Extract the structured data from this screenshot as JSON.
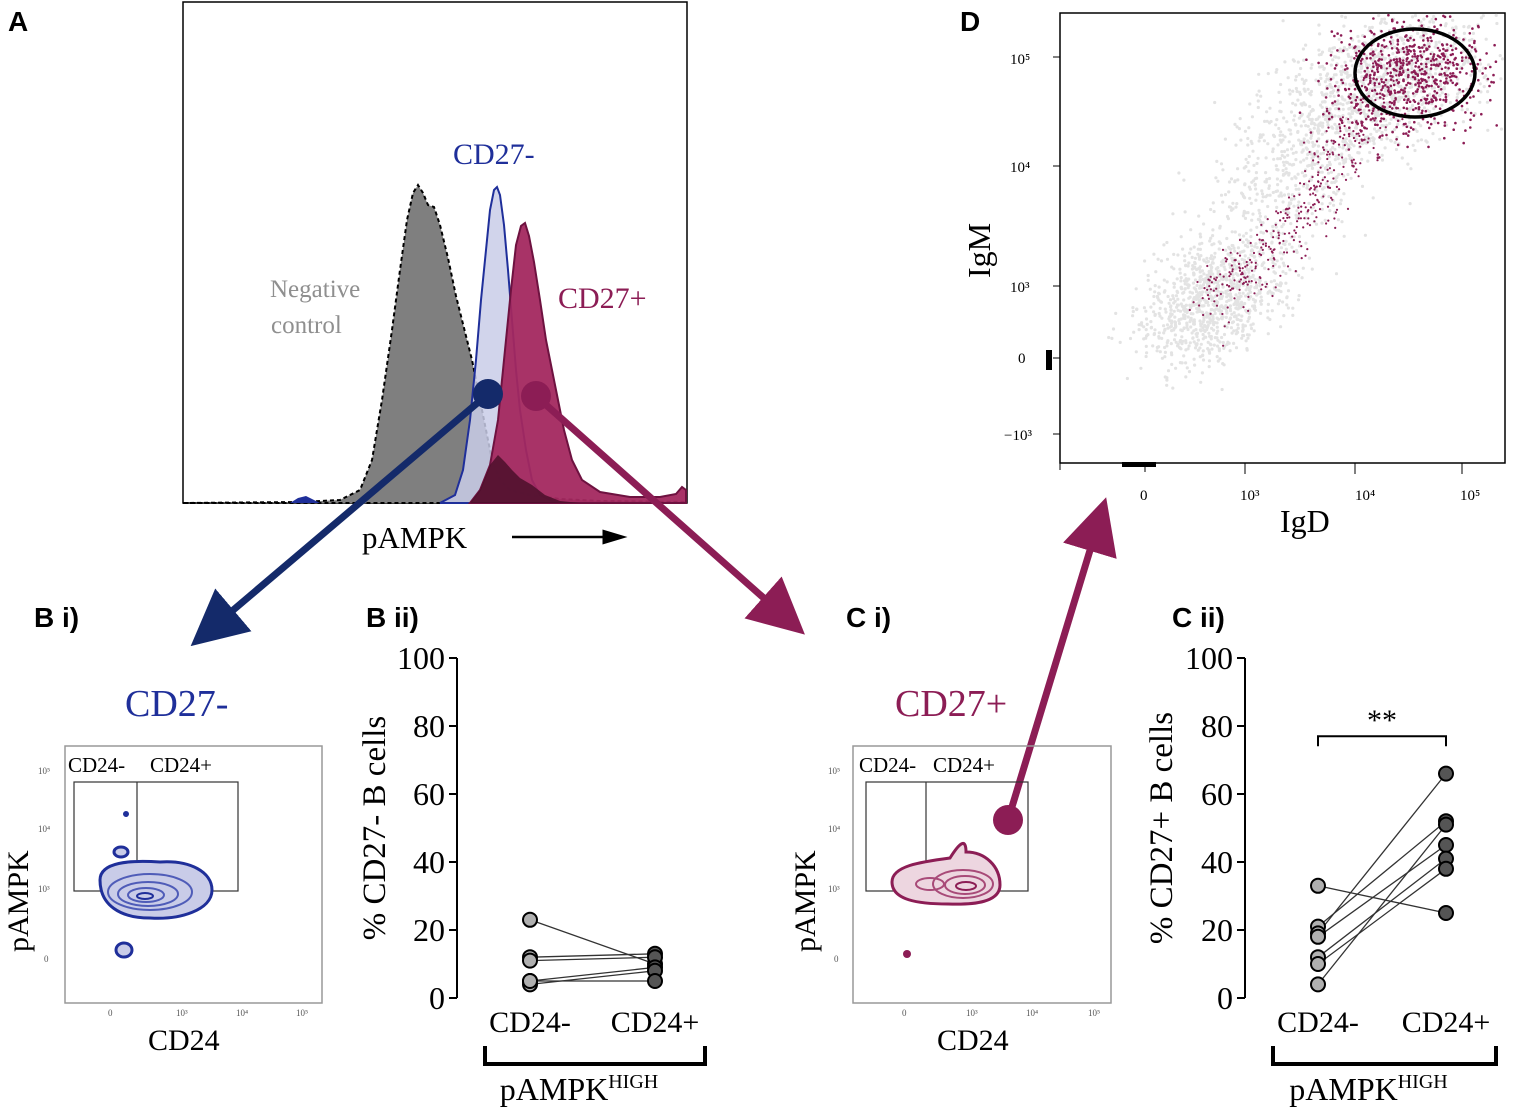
{
  "colors": {
    "cd27neg": "#1f2f9a",
    "cd27neg_fill": "#c9cce8",
    "cd27pos": "#8c1d55",
    "cd27pos_fill": "#a3285f",
    "negative": "#808080",
    "arrow_blue": "#142a6a",
    "arrow_magenta": "#8c1d55",
    "dots_grey": "#e3e3e3",
    "dot_fill_light": "#b0b0b0",
    "dot_fill_dark": "#555555"
  },
  "panelA": {
    "letter": "A",
    "label_cd27neg": "CD27-",
    "label_cd27pos": "CD27+",
    "label_negative_1": "Negative",
    "label_negative_2": "control",
    "xlabel": "pAMPK"
  },
  "panelB1": {
    "letter": "B i)",
    "title": "CD27-",
    "gate_left": "CD24-",
    "gate_right": "CD24+",
    "xlabel": "CD24",
    "ylabel": "pAMPK"
  },
  "panelC1": {
    "letter": "C i)",
    "title": "CD27+",
    "gate_left": "CD24-",
    "gate_right": "CD24+",
    "xlabel": "CD24",
    "ylabel": "pAMPK"
  },
  "panelD": {
    "letter": "D",
    "xlabel": "IgD",
    "ylabel": "IgM"
  },
  "chart_data": [
    {
      "type": "scatter",
      "panel": "B ii)",
      "ylabel": "% CD27- B cells",
      "categories": [
        "CD24-",
        "CD24+"
      ],
      "group_label": "pAMPK",
      "group_label_sup": "HIGH",
      "ylim": [
        0,
        100
      ],
      "yticks": [
        "0",
        "20",
        "40",
        "60",
        "80",
        "100"
      ],
      "pairs": [
        [
          23,
          10
        ],
        [
          12,
          13
        ],
        [
          11,
          12
        ],
        [
          5,
          9
        ],
        [
          4,
          8
        ],
        [
          5,
          5
        ]
      ],
      "significance": ""
    },
    {
      "type": "scatter",
      "panel": "C ii)",
      "ylabel": "% CD27+ B cells",
      "categories": [
        "CD24-",
        "CD24+"
      ],
      "group_label": "pAMPK",
      "group_label_sup": "HIGH",
      "ylim": [
        0,
        100
      ],
      "yticks": [
        "0",
        "20",
        "40",
        "60",
        "80",
        "100"
      ],
      "pairs": [
        [
          33,
          25
        ],
        [
          21,
          52
        ],
        [
          19,
          66
        ],
        [
          18,
          45
        ],
        [
          12,
          41
        ],
        [
          10,
          38
        ],
        [
          4,
          51
        ]
      ],
      "significance": "**"
    }
  ]
}
